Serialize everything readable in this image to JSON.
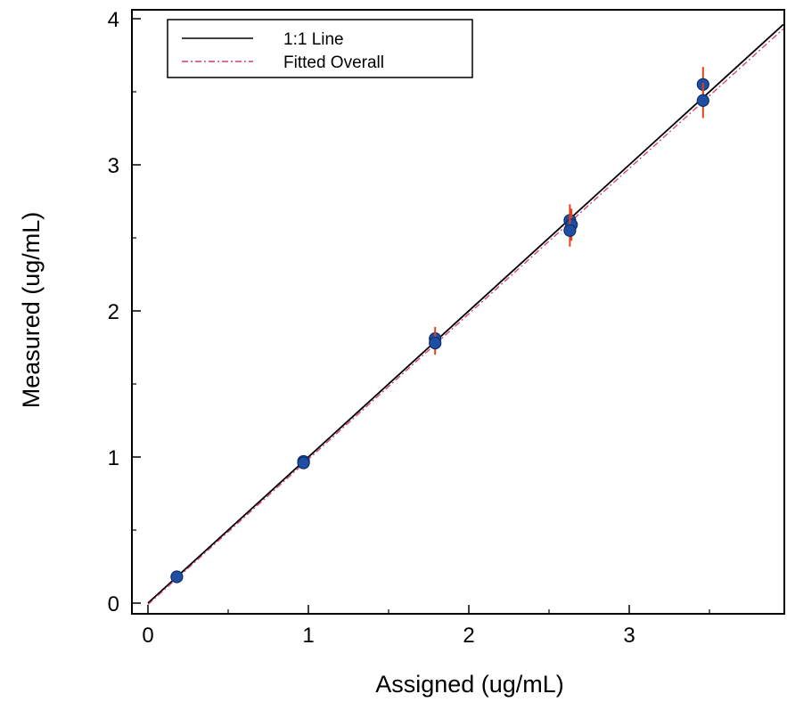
{
  "chart_data": {
    "type": "scatter",
    "title": "",
    "xlabel": "Assigned (ug/mL)",
    "ylabel": "Measured (ug/mL)",
    "xlim": [
      0,
      3.96
    ],
    "ylim": [
      0,
      4.0
    ],
    "x_ticks": [
      0,
      1,
      2,
      3
    ],
    "y_ticks": [
      0,
      1,
      2,
      3,
      4
    ],
    "grid": false,
    "legend_position": "top-left",
    "series": [
      {
        "name": "1:1 Line",
        "kind": "line",
        "color": "#000000",
        "dash": "solid",
        "x": [
          0,
          3.96
        ],
        "y": [
          0,
          3.96
        ]
      },
      {
        "name": "Fitted Overall",
        "kind": "line",
        "color": "#d63a7a",
        "dash": "dashdot",
        "x": [
          0,
          3.96
        ],
        "y": [
          -0.01,
          3.93
        ]
      },
      {
        "kind": "points",
        "color": "#1f4fa3",
        "error_color": "#e0431c",
        "points": [
          {
            "x": 0.18,
            "y": 0.18,
            "err": 0.02
          },
          {
            "x": 0.97,
            "y": 0.97,
            "err": 0.03
          },
          {
            "x": 0.97,
            "y": 0.96,
            "err": 0.03
          },
          {
            "x": 1.79,
            "y": 1.81,
            "err": 0.08
          },
          {
            "x": 1.79,
            "y": 1.78,
            "err": 0.08
          },
          {
            "x": 2.63,
            "y": 2.62,
            "err": 0.11
          },
          {
            "x": 2.64,
            "y": 2.59,
            "err": 0.11
          },
          {
            "x": 2.63,
            "y": 2.55,
            "err": 0.11
          },
          {
            "x": 3.46,
            "y": 3.55,
            "err": 0.12
          },
          {
            "x": 3.46,
            "y": 3.44,
            "err": 0.12
          }
        ]
      }
    ]
  }
}
